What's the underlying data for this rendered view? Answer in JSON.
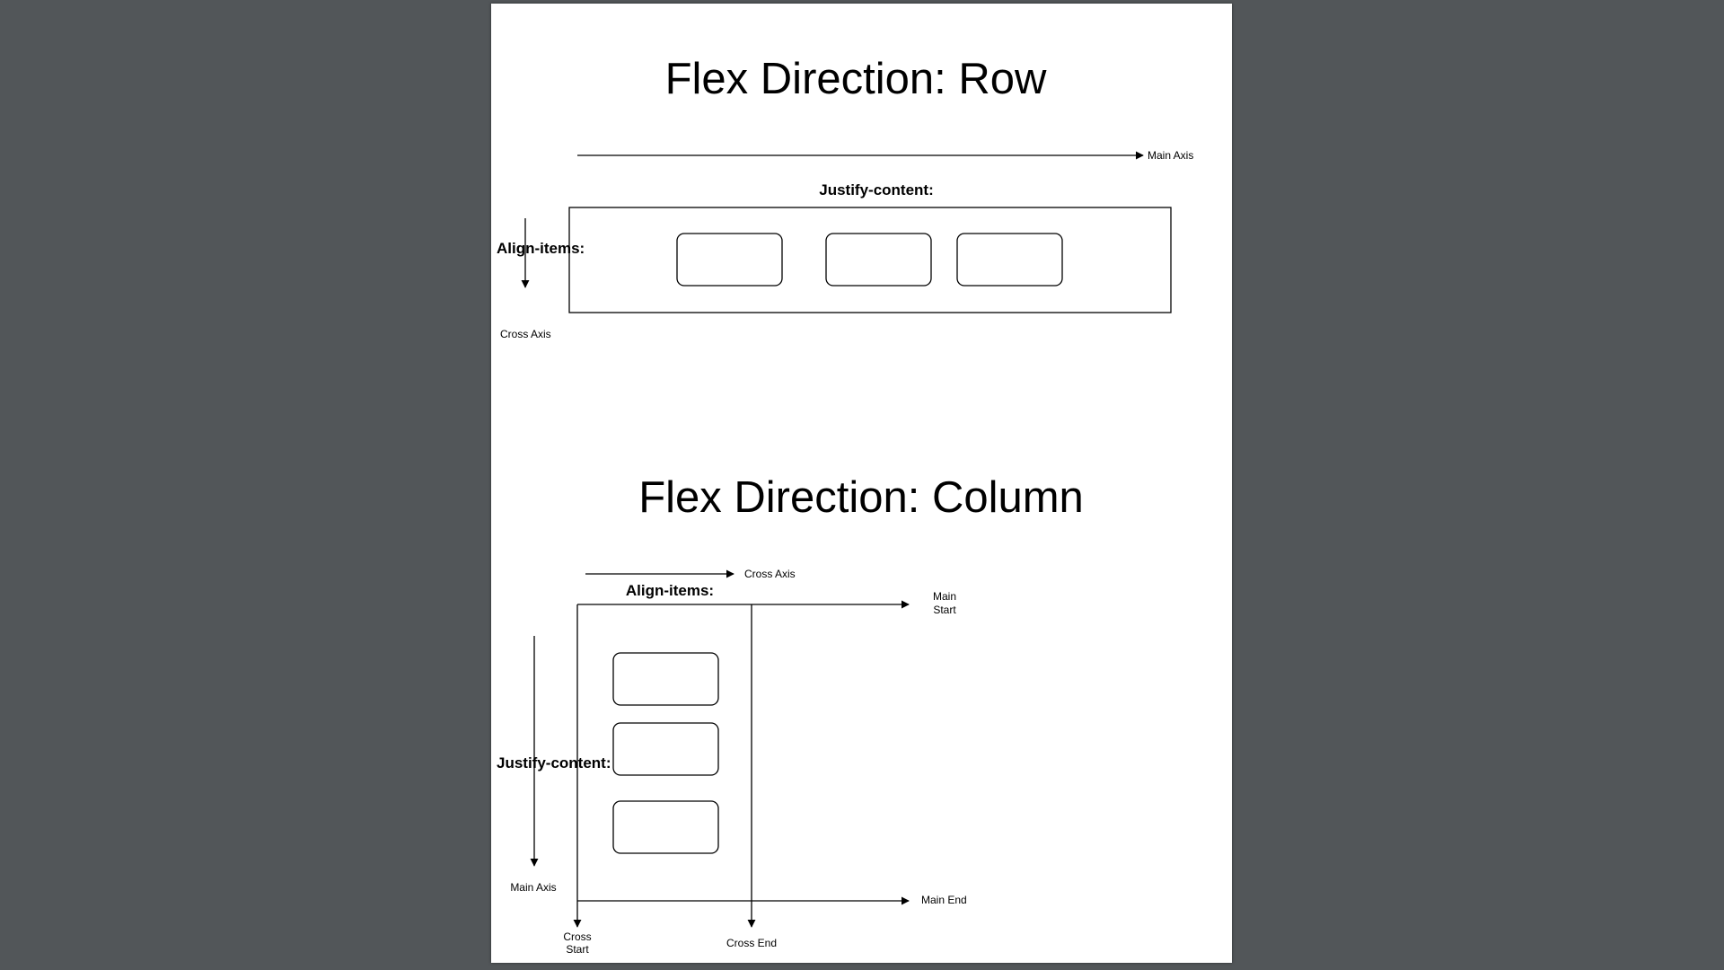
{
  "row_diagram": {
    "title": "Flex Direction: Row",
    "main_axis_label": "Main Axis",
    "justify_label": "Justify-content:",
    "align_label": "Align-items:",
    "cross_axis_label": "Cross Axis",
    "item_count": 3
  },
  "column_diagram": {
    "title": "Flex Direction: Column",
    "cross_axis_label": "Cross Axis",
    "align_label": "Align-items:",
    "main_start_label": [
      "Main",
      "Start"
    ],
    "justify_label": "Justify-content:",
    "main_axis_label": "Main Axis",
    "main_end_label": "Main End",
    "cross_start_label": [
      "Cross",
      "Start"
    ],
    "cross_end_label": "Cross End",
    "item_count": 3
  }
}
